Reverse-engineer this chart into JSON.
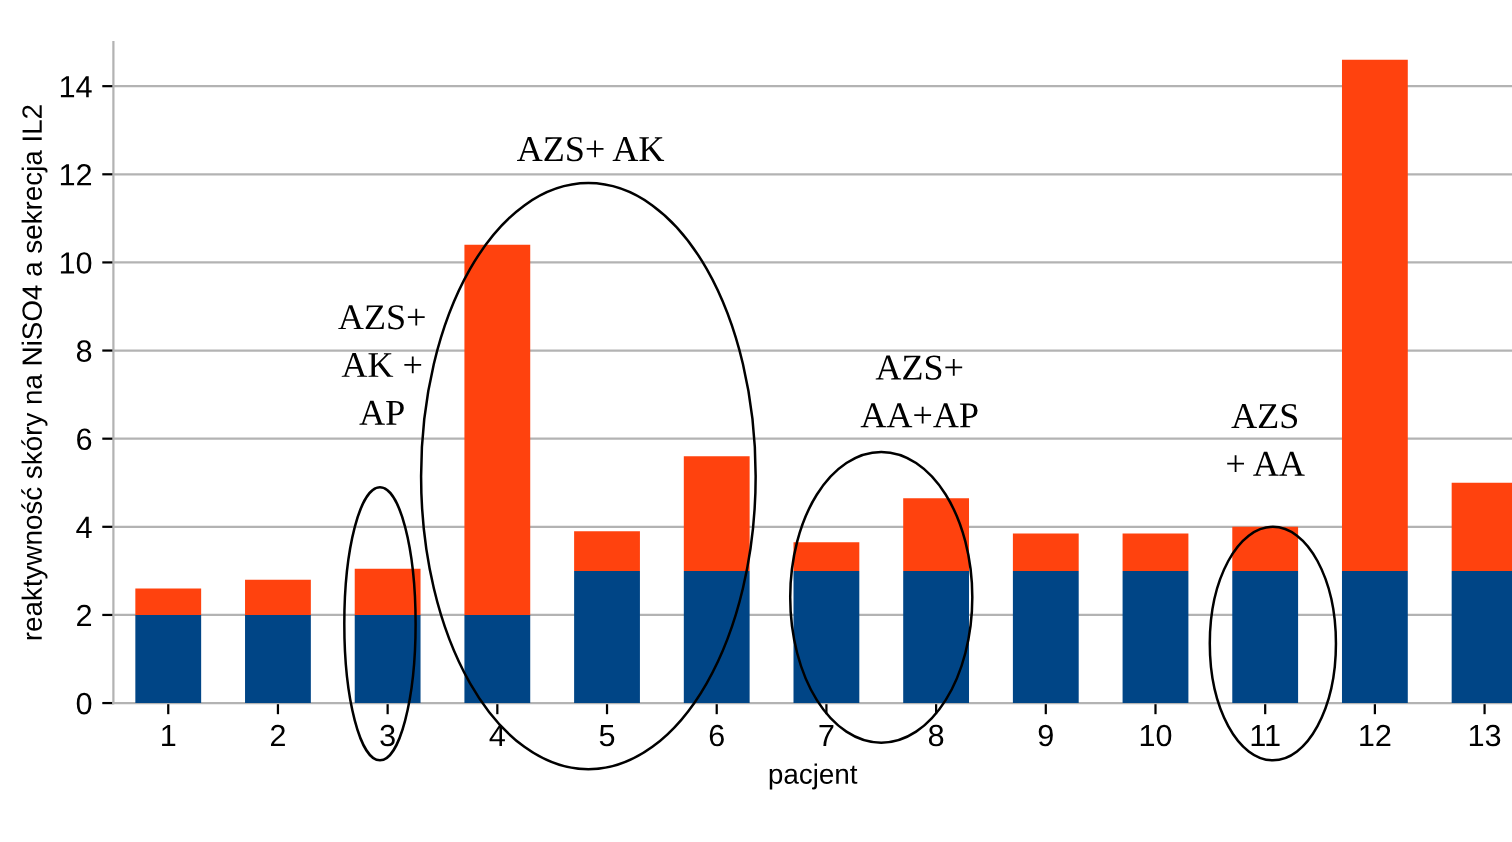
{
  "chart_data": {
    "type": "bar",
    "stacked": true,
    "xlabel": "pacjent",
    "ylabel": "reaktywność skóry na NiSO4 a sekrecja IL2",
    "categories": [
      "1",
      "2",
      "3",
      "4",
      "5",
      "6",
      "7",
      "8",
      "9",
      "10",
      "11",
      "12",
      "13"
    ],
    "series": [
      {
        "color": "#004586",
        "values": [
          2,
          2,
          2,
          2,
          3,
          3,
          3,
          3,
          3,
          3,
          3,
          3,
          3
        ]
      },
      {
        "color": "#ff420e",
        "values": [
          0.6,
          0.8,
          1.05,
          8.4,
          0.9,
          2.6,
          0.65,
          1.65,
          0.85,
          0.85,
          1.0,
          11.6,
          2.0
        ]
      }
    ],
    "ylim": [
      0,
      15
    ],
    "yticks": [
      0,
      2,
      4,
      6,
      8,
      10,
      12,
      14
    ],
    "grid": "y",
    "legend": false,
    "annotations": [
      "AZS+\nAK +\nAP",
      "AZS+ AK",
      "AZS+\nAA+AP",
      "AZS\n+ AA"
    ]
  }
}
